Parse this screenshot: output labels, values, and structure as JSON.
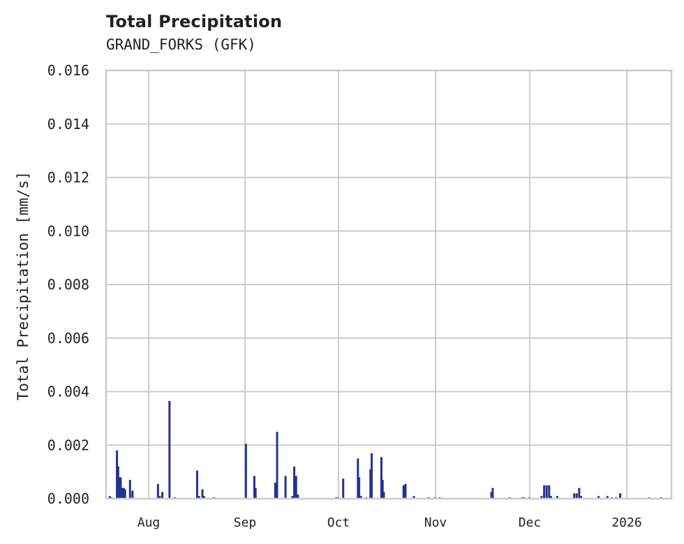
{
  "header": {
    "title": "Total Precipitation",
    "subtitle": "GRAND_FORKS (GFK)"
  },
  "chart_data": {
    "type": "bar",
    "title": "Total Precipitation",
    "subtitle": "GRAND_FORKS (GFK)",
    "xlabel": "",
    "ylabel": "Total Precipitation [mm/s]",
    "ylim": [
      0,
      0.016
    ],
    "yticks": [
      "0.000",
      "0.002",
      "0.004",
      "0.006",
      "0.008",
      "0.010",
      "0.012",
      "0.014",
      "0.016"
    ],
    "xticks": [
      "Aug",
      "Sep",
      "Oct",
      "Nov",
      "Dec",
      "2026"
    ],
    "grid": true,
    "color": "#24338f",
    "x_units": "days since 2025-07-01",
    "xlim": [
      16.5,
      198.6
    ],
    "series": [
      {
        "name": "Total Precipitation",
        "points": [
          [
            18.5,
            0.0001
          ],
          [
            19.0,
            5e-05
          ],
          [
            20.8,
            0.0018
          ],
          [
            21.2,
            0.0012
          ],
          [
            21.6,
            0.0008
          ],
          [
            22.0,
            0.0008
          ],
          [
            22.5,
            0.0004
          ],
          [
            23.0,
            0.0004
          ],
          [
            23.4,
            0.00035
          ],
          [
            25.0,
            0.0007
          ],
          [
            25.8,
            0.0003
          ],
          [
            34.0,
            0.00055
          ],
          [
            34.6,
            0.0001
          ],
          [
            35.4,
            0.00025
          ],
          [
            37.7,
            0.00365
          ],
          [
            39.4,
            5e-05
          ],
          [
            46.6,
            0.00105
          ],
          [
            47.2,
            0.0001
          ],
          [
            48.3,
            0.00035
          ],
          [
            48.8,
            0.0001
          ],
          [
            52.0,
            5e-05
          ],
          [
            62.3,
            0.00205
          ],
          [
            65.0,
            0.00085
          ],
          [
            65.4,
            0.0004
          ],
          [
            71.7,
            0.0006
          ],
          [
            72.3,
            0.0025
          ],
          [
            75.0,
            0.00085
          ],
          [
            77.2,
            0.0001
          ],
          [
            77.8,
            0.0012
          ],
          [
            78.4,
            0.00085
          ],
          [
            79.0,
            0.00015
          ],
          [
            91.2,
            5e-05
          ],
          [
            91.8,
            5e-05
          ],
          [
            93.5,
            0.00075
          ],
          [
            98.2,
            0.0015
          ],
          [
            98.6,
            0.0008
          ],
          [
            99.2,
            0.0001
          ],
          [
            100.8,
            5e-05
          ],
          [
            102.2,
            0.0011
          ],
          [
            102.6,
            0.0017
          ],
          [
            105.7,
            0.00155
          ],
          [
            106.1,
            0.0007
          ],
          [
            106.5,
            0.00025
          ],
          [
            112.8,
            0.0005
          ],
          [
            113.4,
            0.00055
          ],
          [
            116.1,
            0.0001
          ],
          [
            120.8,
            5e-05
          ],
          [
            122.8,
            5e-05
          ],
          [
            124.3,
            5e-05
          ],
          [
            140.8,
            0.00025
          ],
          [
            141.2,
            0.0004
          ],
          [
            146.6,
            5e-05
          ],
          [
            150.6,
            5e-05
          ],
          [
            151.2,
            5e-05
          ],
          [
            152.8,
            5e-05
          ],
          [
            156.8,
            0.0001
          ],
          [
            157.6,
            0.0005
          ],
          [
            158.4,
            0.0005
          ],
          [
            159.2,
            0.0005
          ],
          [
            159.8,
            0.0001
          ],
          [
            161.8,
            0.0001
          ],
          [
            167.2,
            0.0002
          ],
          [
            168.0,
            0.0002
          ],
          [
            168.8,
            0.0004
          ],
          [
            169.4,
            0.0001
          ],
          [
            175.0,
            0.0001
          ],
          [
            177.8,
            0.0001
          ],
          [
            179.2,
            5e-05
          ],
          [
            180.6,
            5e-05
          ],
          [
            181.9,
            0.0002
          ],
          [
            191.2,
            5e-05
          ],
          [
            195.0,
            5e-05
          ]
        ]
      }
    ]
  }
}
